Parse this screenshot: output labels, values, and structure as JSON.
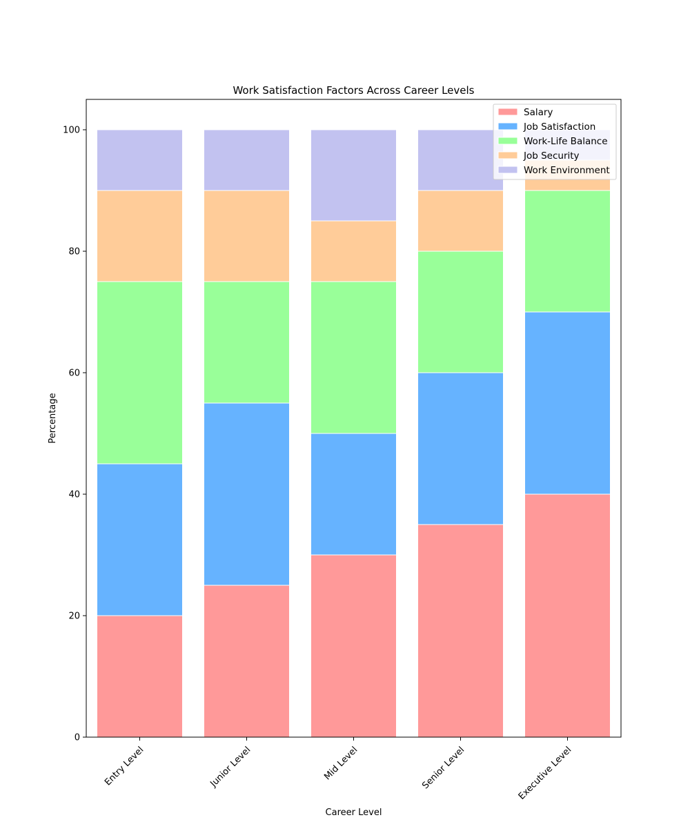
{
  "chart_data": {
    "type": "bar",
    "stacked": true,
    "title": "Work Satisfaction Factors Across Career Levels",
    "xlabel": "Career Level",
    "ylabel": "Percentage",
    "ylim": [
      0,
      105
    ],
    "yticks": [
      "0",
      "20",
      "40",
      "60",
      "80",
      "100"
    ],
    "categories": [
      "Entry Level",
      "Junior Level",
      "Mid Level",
      "Senior Level",
      "Executive Level"
    ],
    "series": [
      {
        "name": "Salary",
        "color": "#ff9999",
        "values": [
          20,
          25,
          30,
          35,
          40
        ]
      },
      {
        "name": "Job Satisfaction",
        "color": "#66b3ff",
        "values": [
          25,
          30,
          20,
          25,
          30
        ]
      },
      {
        "name": "Work-Life Balance",
        "color": "#99ff99",
        "values": [
          30,
          20,
          25,
          20,
          20
        ]
      },
      {
        "name": "Job Security",
        "color": "#ffcc99",
        "values": [
          15,
          15,
          10,
          10,
          5
        ]
      },
      {
        "name": "Work Environment",
        "color": "#c2c2f0",
        "values": [
          10,
          10,
          15,
          10,
          5
        ]
      }
    ],
    "grid": false,
    "legend_position": "top-right",
    "bar_edge_color": "#ffffff"
  }
}
